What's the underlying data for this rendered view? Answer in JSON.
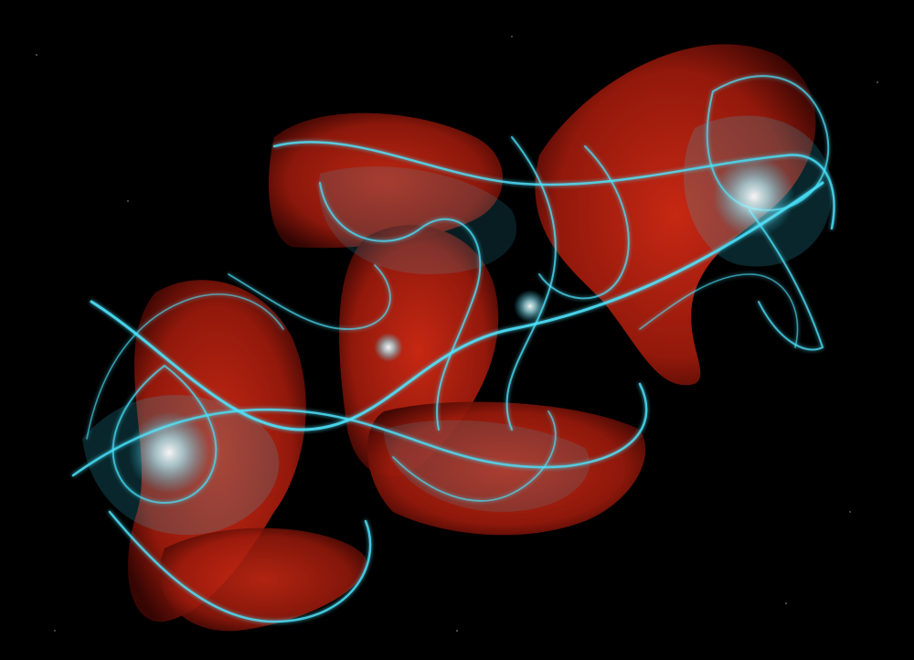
{
  "image": {
    "kind": "abstract-fractal-render",
    "background_color": "#000000",
    "colors": {
      "red_ribbon": "#b3200f",
      "red_ribbon_dark": "#5a0a05",
      "cyan_glow": "#4fe6ff",
      "cyan_core": "#d8fbff",
      "cyan_dim": "#1f8fa8"
    }
  }
}
